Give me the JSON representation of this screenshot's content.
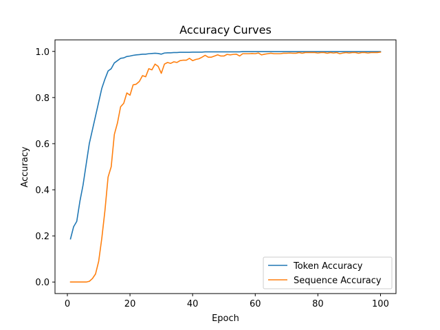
{
  "chart_data": {
    "type": "line",
    "title": "Accuracy Curves",
    "xlabel": "Epoch",
    "ylabel": "Accuracy",
    "xlim": [
      -3.95,
      104.95
    ],
    "ylim": [
      -0.05,
      1.05
    ],
    "xticks": [
      0,
      20,
      40,
      60,
      80,
      100
    ],
    "yticks": [
      0.0,
      0.2,
      0.4,
      0.6,
      0.8,
      1.0
    ],
    "xtick_labels": [
      "0",
      "20",
      "40",
      "60",
      "80",
      "100"
    ],
    "ytick_labels": [
      "0.0",
      "0.2",
      "0.4",
      "0.6",
      "0.8",
      "1.0"
    ],
    "grid": false,
    "legend_position": "bottom-right",
    "x": [
      1,
      2,
      3,
      4,
      5,
      6,
      7,
      8,
      9,
      10,
      11,
      12,
      13,
      14,
      15,
      16,
      17,
      18,
      19,
      20,
      21,
      22,
      23,
      24,
      25,
      26,
      27,
      28,
      29,
      30,
      31,
      32,
      33,
      34,
      35,
      36,
      37,
      38,
      39,
      40,
      41,
      42,
      43,
      44,
      45,
      46,
      47,
      48,
      49,
      50,
      51,
      52,
      53,
      54,
      55,
      56,
      57,
      58,
      59,
      60,
      61,
      62,
      63,
      64,
      65,
      66,
      67,
      68,
      69,
      70,
      71,
      72,
      73,
      74,
      75,
      76,
      77,
      78,
      79,
      80,
      81,
      82,
      83,
      84,
      85,
      86,
      87,
      88,
      89,
      90,
      91,
      92,
      93,
      94,
      95,
      96,
      97,
      98,
      99,
      100
    ],
    "series": [
      {
        "name": "Token Accuracy",
        "color": "#1f77b4",
        "values": [
          0.187,
          0.24,
          0.263,
          0.35,
          0.42,
          0.51,
          0.6,
          0.66,
          0.72,
          0.78,
          0.84,
          0.88,
          0.915,
          0.925,
          0.95,
          0.96,
          0.97,
          0.972,
          0.978,
          0.98,
          0.983,
          0.985,
          0.986,
          0.988,
          0.988,
          0.99,
          0.991,
          0.992,
          0.991,
          0.988,
          0.993,
          0.994,
          0.994,
          0.995,
          0.995,
          0.996,
          0.996,
          0.996,
          0.996,
          0.997,
          0.997,
          0.997,
          0.997,
          0.998,
          0.998,
          0.998,
          0.998,
          0.998,
          0.998,
          0.998,
          0.998,
          0.998,
          0.998,
          0.998,
          0.998,
          0.999,
          0.999,
          0.999,
          0.999,
          0.999,
          0.999,
          0.999,
          0.999,
          0.999,
          0.999,
          0.999,
          0.999,
          0.999,
          0.999,
          0.999,
          0.999,
          0.999,
          0.999,
          0.999,
          0.999,
          0.999,
          0.999,
          0.999,
          0.999,
          0.999,
          0.999,
          0.999,
          0.999,
          0.999,
          0.999,
          0.999,
          0.999,
          0.999,
          0.999,
          0.999,
          0.999,
          0.999,
          0.999,
          0.999,
          0.999,
          0.999,
          0.999,
          0.999,
          0.999,
          0.999
        ]
      },
      {
        "name": "Sequence Accuracy",
        "color": "#ff7f0e",
        "values": [
          0.0,
          0.0,
          0.0,
          0.0,
          0.0,
          0.0,
          0.003,
          0.015,
          0.035,
          0.09,
          0.19,
          0.31,
          0.455,
          0.5,
          0.64,
          0.69,
          0.76,
          0.775,
          0.82,
          0.81,
          0.855,
          0.858,
          0.87,
          0.895,
          0.89,
          0.925,
          0.92,
          0.945,
          0.935,
          0.905,
          0.945,
          0.952,
          0.948,
          0.955,
          0.952,
          0.96,
          0.962,
          0.962,
          0.97,
          0.96,
          0.965,
          0.968,
          0.975,
          0.983,
          0.975,
          0.975,
          0.98,
          0.985,
          0.98,
          0.98,
          0.987,
          0.985,
          0.987,
          0.988,
          0.98,
          0.99,
          0.99,
          0.99,
          0.991,
          0.99,
          0.993,
          0.985,
          0.988,
          0.99,
          0.992,
          0.99,
          0.99,
          0.99,
          0.992,
          0.992,
          0.993,
          0.992,
          0.992,
          0.995,
          0.992,
          0.995,
          0.995,
          0.995,
          0.995,
          0.993,
          0.995,
          0.995,
          0.992,
          0.995,
          0.993,
          0.995,
          0.99,
          0.993,
          0.995,
          0.993,
          0.995,
          0.995,
          0.992,
          0.995,
          0.995,
          0.993,
          0.995,
          0.995,
          0.995,
          0.997
        ]
      }
    ]
  }
}
